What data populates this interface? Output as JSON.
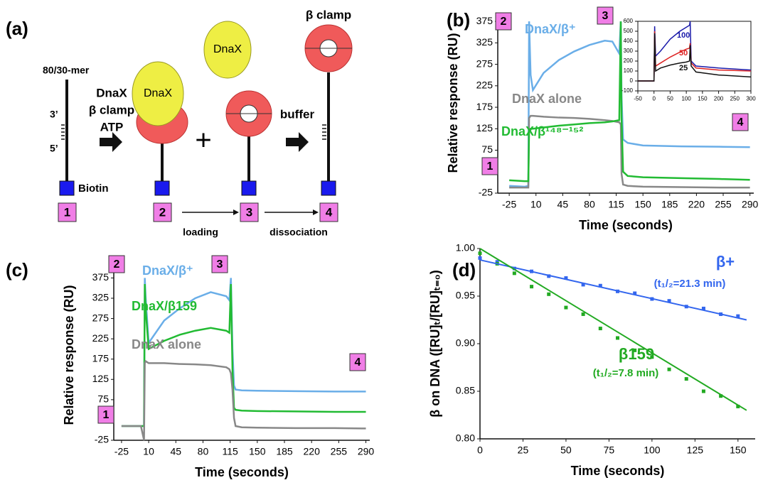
{
  "diagram": {
    "panel": "(a)",
    "dna_label": "80/30-mer",
    "end3": "3’",
    "end5": "5’",
    "reagents": [
      "DnaX",
      "β clamp",
      "ATP"
    ],
    "biotin": "Biotin",
    "dnax_bound": "DnaX",
    "dnax_free": "DnaX",
    "beta_clamp": "β clamp",
    "plus": "+",
    "buffer": "buffer",
    "steps": [
      "1",
      "2",
      "3",
      "4"
    ],
    "loading": "loading",
    "dissociation": "dissociation"
  },
  "chart_data": [
    {
      "type": "line",
      "panel": "(b)",
      "xlabel": "Time (seconds)",
      "ylabel": "Relative response (RU)",
      "xlim": [
        -40,
        295
      ],
      "ylim": [
        -25,
        395
      ],
      "xticks": [
        -25,
        10,
        45,
        80,
        115,
        150,
        185,
        220,
        255,
        290
      ],
      "yticks": [
        -25,
        25,
        75,
        125,
        175,
        225,
        275,
        325,
        375
      ],
      "markers": [
        "1",
        "2",
        "3",
        "4"
      ],
      "x": [
        -25,
        -5,
        0,
        1,
        3,
        6,
        20,
        40,
        60,
        80,
        100,
        110,
        119,
        121,
        122,
        124,
        130,
        150,
        200,
        250,
        290
      ],
      "series": [
        {
          "name": "DnaX/β⁺",
          "color": "#6aaee8",
          "values": [
            -8,
            -10,
            -8,
            375,
            250,
            215,
            255,
            285,
            305,
            320,
            330,
            328,
            300,
            375,
            200,
            100,
            92,
            86,
            84,
            83,
            82
          ]
        },
        {
          "name": "DnaX alone",
          "color": "#888888",
          "values": [
            -12,
            -12,
            -12,
            150,
            155,
            155,
            153,
            151,
            150,
            148,
            145,
            143,
            140,
            135,
            20,
            -5,
            -8,
            -10,
            -11,
            -12,
            -12
          ]
        },
        {
          "name": "DnaX/β¹⁴⁸⁻¹⁵²",
          "color": "#22bb33",
          "values": [
            5,
            3,
            3,
            120,
            125,
            125,
            128,
            132,
            135,
            138,
            140,
            142,
            145,
            375,
            150,
            25,
            15,
            12,
            10,
            8,
            6
          ]
        }
      ]
    },
    {
      "type": "line",
      "xlim": [
        -50,
        300
      ],
      "ylim": [
        -100,
        600
      ],
      "xticks": [
        -50,
        0,
        50,
        100,
        150,
        200,
        250,
        300
      ],
      "yticks": [
        -100,
        0,
        100,
        200,
        300,
        400,
        500,
        600
      ],
      "x": [
        -50,
        -10,
        0,
        2,
        5,
        20,
        50,
        80,
        100,
        110,
        112,
        115,
        130,
        200,
        300
      ],
      "series": [
        {
          "name": "100",
          "color": "#1a1aaa",
          "values": [
            0,
            0,
            0,
            550,
            250,
            300,
            420,
            500,
            540,
            560,
            600,
            200,
            150,
            130,
            110
          ]
        },
        {
          "name": "50",
          "color": "#dd2222",
          "values": [
            0,
            0,
            0,
            500,
            150,
            180,
            240,
            290,
            320,
            330,
            380,
            180,
            130,
            110,
            100
          ]
        },
        {
          "name": "25",
          "color": "#111111",
          "values": [
            0,
            0,
            0,
            480,
            100,
            130,
            160,
            180,
            190,
            200,
            360,
            150,
            90,
            60,
            40
          ]
        }
      ]
    },
    {
      "type": "line",
      "panel": "(c)",
      "xlabel": "Time (seconds)",
      "ylabel": "Relative response (RU)",
      "xlim": [
        -35,
        295
      ],
      "ylim": [
        -25,
        395
      ],
      "xticks": [
        -25,
        10,
        45,
        80,
        115,
        150,
        185,
        220,
        255,
        290
      ],
      "yticks": [
        -25,
        25,
        75,
        125,
        175,
        225,
        275,
        325,
        375
      ],
      "markers": [
        "1",
        "2",
        "3",
        "4"
      ],
      "x": [
        -25,
        0,
        4,
        5,
        6,
        10,
        30,
        50,
        70,
        90,
        110,
        114,
        116,
        118,
        120,
        122,
        130,
        150,
        200,
        250,
        290
      ],
      "series": [
        {
          "name": "DnaX/β⁺",
          "color": "#6aaee8",
          "values": [
            10,
            10,
            10,
            375,
            330,
            215,
            270,
            300,
            325,
            340,
            330,
            320,
            375,
            200,
            110,
            100,
            98,
            97,
            96,
            95,
            95
          ]
        },
        {
          "name": "DnaX/β159",
          "color": "#22bb33",
          "values": [
            10,
            10,
            10,
            360,
            300,
            200,
            220,
            235,
            245,
            252,
            245,
            240,
            360,
            150,
            55,
            50,
            48,
            47,
            46,
            45,
            45
          ]
        },
        {
          "name": "DnaX alone",
          "color": "#888888",
          "values": [
            10,
            10,
            -25,
            165,
            170,
            165,
            165,
            163,
            162,
            160,
            155,
            150,
            140,
            100,
            30,
            10,
            7,
            6,
            5,
            5,
            4
          ]
        }
      ]
    },
    {
      "type": "scatter",
      "panel": "(d)",
      "xlabel": "Time (seconds)",
      "ylabel": "β on DNA ([RU]ₜ/[RU]ₜ₌₀)",
      "xlim": [
        0,
        160
      ],
      "ylim": [
        0.8,
        1.0
      ],
      "xticks": [
        0,
        25,
        50,
        75,
        100,
        125,
        150
      ],
      "yticks": [
        {
          "value": 0.8,
          "label": "0.80"
        },
        0.85,
        {
          "value": 0.9,
          "label": "0.90"
        },
        0.95,
        {
          "value": 1.0,
          "label": "1.00"
        }
      ],
      "series": [
        {
          "color": "#3366ee",
          "x": [
            0,
            10,
            20,
            30,
            40,
            50,
            60,
            70,
            80,
            90,
            100,
            110,
            120,
            130,
            140,
            150
          ],
          "values": [
            0.99,
            0.986,
            0.979,
            0.976,
            0.971,
            0.969,
            0.962,
            0.961,
            0.955,
            0.953,
            0.947,
            0.945,
            0.939,
            0.937,
            0.931,
            0.929
          ]
        },
        {
          "color": "#22aa22",
          "x": [
            0,
            10,
            20,
            30,
            40,
            50,
            60,
            70,
            80,
            90,
            100,
            110,
            120,
            130,
            140,
            150
          ],
          "values": [
            0.995,
            0.984,
            0.974,
            0.96,
            0.952,
            0.938,
            0.931,
            0.916,
            0.906,
            0.893,
            0.886,
            0.873,
            0.863,
            0.85,
            0.845,
            0.834
          ]
        }
      ],
      "fit_lines": [
        {
          "color": "#3366ee",
          "x": [
            0,
            155
          ],
          "values": [
            0.988,
            0.925
          ]
        },
        {
          "color": "#22aa22",
          "x": [
            0,
            155
          ],
          "values": [
            1.0,
            0.83
          ]
        }
      ],
      "annotations": [
        {
          "text": "β+",
          "color": "#3366ee"
        },
        {
          "text": "(t₁/₂=21.3 min)",
          "color": "#3366ee"
        },
        {
          "text": "β159",
          "color": "#22aa22"
        },
        {
          "text": "(t₁/₂=7.8 min)",
          "color": "#22aa22"
        }
      ]
    }
  ]
}
